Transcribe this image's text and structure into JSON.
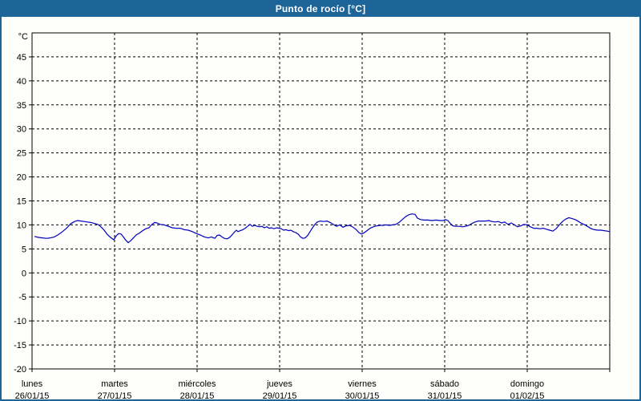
{
  "window": {
    "title": "Punto de rocío [°C]"
  },
  "colors": {
    "titlebar_bg": "#1d6498",
    "frame_border": "#1d6498",
    "title_text": "#ffffff",
    "plot_bg": "#fefefc",
    "axis": "#000000",
    "gridline": "#000000",
    "tick_text": "#000000",
    "series_line": "#0000bf"
  },
  "chart_data": {
    "type": "line",
    "title": "Punto de rocío [°C]",
    "ylabel": "°C",
    "xlabel": "",
    "ylim": [
      -20,
      50
    ],
    "y_ticks": [
      45,
      40,
      35,
      30,
      25,
      20,
      15,
      10,
      5,
      0,
      -5,
      -10,
      -15,
      -20
    ],
    "x_range_days": [
      0,
      7
    ],
    "grid": "dashed",
    "legend_position": "none",
    "x_categories": [
      {
        "name": "lunes",
        "date": "26/01/15"
      },
      {
        "name": "martes",
        "date": "27/01/15"
      },
      {
        "name": "miércoles",
        "date": "28/01/15"
      },
      {
        "name": "jueves",
        "date": "29/01/15"
      },
      {
        "name": "viernes",
        "date": "30/01/15"
      },
      {
        "name": "sábado",
        "date": "31/01/15"
      },
      {
        "name": "domingo",
        "date": "01/02/15"
      }
    ],
    "series": [
      {
        "name": "Punto de rocío",
        "unit": "°C",
        "color": "#0000bf",
        "points_day_temp": [
          [
            0.029,
            7.6
          ],
          [
            0.078,
            7.4
          ],
          [
            0.126,
            7.3
          ],
          [
            0.175,
            7.2
          ],
          [
            0.223,
            7.3
          ],
          [
            0.272,
            7.5
          ],
          [
            0.32,
            8.0
          ],
          [
            0.369,
            8.6
          ],
          [
            0.417,
            9.3
          ],
          [
            0.466,
            10.2
          ],
          [
            0.515,
            10.7
          ],
          [
            0.553,
            10.9
          ],
          [
            0.592,
            10.8
          ],
          [
            0.631,
            10.7
          ],
          [
            0.67,
            10.6
          ],
          [
            0.709,
            10.5
          ],
          [
            0.757,
            10.3
          ],
          [
            0.796,
            10.1
          ],
          [
            0.835,
            9.6
          ],
          [
            0.874,
            8.9
          ],
          [
            0.913,
            8.0
          ],
          [
            0.951,
            7.4
          ],
          [
            0.99,
            6.9
          ],
          [
            1.019,
            7.7
          ],
          [
            1.049,
            8.2
          ],
          [
            1.078,
            8.1
          ],
          [
            1.107,
            7.5
          ],
          [
            1.136,
            6.8
          ],
          [
            1.165,
            6.3
          ],
          [
            1.194,
            6.7
          ],
          [
            1.223,
            7.2
          ],
          [
            1.262,
            7.9
          ],
          [
            1.301,
            8.3
          ],
          [
            1.34,
            8.8
          ],
          [
            1.379,
            9.2
          ],
          [
            1.417,
            9.4
          ],
          [
            1.447,
            10.0
          ],
          [
            1.485,
            10.5
          ],
          [
            1.515,
            10.4
          ],
          [
            1.553,
            10.1
          ],
          [
            1.602,
            10.0
          ],
          [
            1.65,
            9.7
          ],
          [
            1.699,
            9.4
          ],
          [
            1.748,
            9.3
          ],
          [
            1.796,
            9.3
          ],
          [
            1.845,
            9.0
          ],
          [
            1.893,
            8.9
          ],
          [
            1.942,
            8.6
          ],
          [
            1.99,
            8.2
          ],
          [
            2.039,
            7.9
          ],
          [
            2.087,
            7.5
          ],
          [
            2.136,
            7.3
          ],
          [
            2.175,
            7.5
          ],
          [
            2.214,
            7.2
          ],
          [
            2.243,
            7.8
          ],
          [
            2.272,
            7.9
          ],
          [
            2.301,
            7.5
          ],
          [
            2.33,
            7.2
          ],
          [
            2.359,
            7.1
          ],
          [
            2.388,
            7.3
          ],
          [
            2.417,
            7.8
          ],
          [
            2.447,
            8.4
          ],
          [
            2.476,
            8.9
          ],
          [
            2.495,
            8.6
          ],
          [
            2.524,
            8.8
          ],
          [
            2.553,
            9.0
          ],
          [
            2.583,
            9.3
          ],
          [
            2.612,
            9.7
          ],
          [
            2.641,
            10.1
          ],
          [
            2.67,
            9.7
          ],
          [
            2.699,
            9.9
          ],
          [
            2.728,
            9.7
          ],
          [
            2.757,
            9.6
          ],
          [
            2.786,
            9.7
          ],
          [
            2.816,
            9.4
          ],
          [
            2.845,
            9.6
          ],
          [
            2.874,
            9.3
          ],
          [
            2.903,
            9.4
          ],
          [
            2.932,
            9.2
          ],
          [
            2.961,
            9.4
          ],
          [
            2.99,
            9.3
          ],
          [
            3.019,
            9.2
          ],
          [
            3.049,
            8.9
          ],
          [
            3.078,
            9.0
          ],
          [
            3.107,
            8.8
          ],
          [
            3.136,
            8.9
          ],
          [
            3.165,
            8.6
          ],
          [
            3.194,
            8.4
          ],
          [
            3.223,
            8.1
          ],
          [
            3.252,
            7.5
          ],
          [
            3.282,
            7.2
          ],
          [
            3.311,
            7.3
          ],
          [
            3.34,
            7.8
          ],
          [
            3.369,
            8.6
          ],
          [
            3.398,
            9.4
          ],
          [
            3.427,
            10.1
          ],
          [
            3.456,
            10.6
          ],
          [
            3.495,
            10.8
          ],
          [
            3.534,
            10.7
          ],
          [
            3.573,
            10.8
          ],
          [
            3.612,
            10.5
          ],
          [
            3.65,
            10.1
          ],
          [
            3.689,
            9.7
          ],
          [
            3.728,
            10.0
          ],
          [
            3.767,
            9.5
          ],
          [
            3.806,
            9.8
          ],
          [
            3.845,
            9.9
          ],
          [
            3.883,
            9.6
          ],
          [
            3.922,
            9.1
          ],
          [
            3.961,
            8.4
          ],
          [
            3.99,
            8.1
          ],
          [
            4.019,
            8.3
          ],
          [
            4.058,
            8.8
          ],
          [
            4.097,
            9.3
          ],
          [
            4.136,
            9.6
          ],
          [
            4.175,
            9.8
          ],
          [
            4.214,
            9.9
          ],
          [
            4.252,
            9.9
          ],
          [
            4.291,
            10.0
          ],
          [
            4.33,
            9.9
          ],
          [
            4.369,
            10.0
          ],
          [
            4.408,
            10.1
          ],
          [
            4.447,
            10.5
          ],
          [
            4.485,
            11.1
          ],
          [
            4.524,
            11.7
          ],
          [
            4.563,
            12.1
          ],
          [
            4.602,
            12.3
          ],
          [
            4.641,
            12.2
          ],
          [
            4.67,
            11.4
          ],
          [
            4.709,
            11.1
          ],
          [
            4.748,
            11.0
          ],
          [
            4.796,
            11.0
          ],
          [
            4.845,
            10.9
          ],
          [
            4.893,
            11.0
          ],
          [
            4.942,
            10.9
          ],
          [
            4.981,
            10.9
          ],
          [
            5.01,
            11.1
          ],
          [
            5.039,
            10.9
          ],
          [
            5.068,
            10.3
          ],
          [
            5.097,
            9.8
          ],
          [
            5.136,
            9.7
          ],
          [
            5.175,
            9.7
          ],
          [
            5.214,
            9.6
          ],
          [
            5.252,
            9.7
          ],
          [
            5.291,
            9.9
          ],
          [
            5.33,
            10.3
          ],
          [
            5.369,
            10.6
          ],
          [
            5.408,
            10.8
          ],
          [
            5.456,
            10.8
          ],
          [
            5.495,
            10.8
          ],
          [
            5.534,
            10.9
          ],
          [
            5.573,
            10.7
          ],
          [
            5.612,
            10.6
          ],
          [
            5.65,
            10.7
          ],
          [
            5.689,
            10.4
          ],
          [
            5.728,
            10.6
          ],
          [
            5.767,
            10.1
          ],
          [
            5.806,
            10.4
          ],
          [
            5.845,
            10.0
          ],
          [
            5.883,
            9.6
          ],
          [
            5.922,
            9.8
          ],
          [
            5.961,
            10.1
          ],
          [
            6.0,
            10.0
          ],
          [
            6.039,
            9.6
          ],
          [
            6.078,
            9.3
          ],
          [
            6.117,
            9.3
          ],
          [
            6.155,
            9.2
          ],
          [
            6.194,
            9.3
          ],
          [
            6.233,
            9.1
          ],
          [
            6.272,
            8.9
          ],
          [
            6.311,
            8.7
          ],
          [
            6.35,
            9.2
          ],
          [
            6.388,
            10.0
          ],
          [
            6.427,
            10.7
          ],
          [
            6.466,
            11.2
          ],
          [
            6.505,
            11.5
          ],
          [
            6.544,
            11.3
          ],
          [
            6.583,
            11.1
          ],
          [
            6.621,
            10.7
          ],
          [
            6.66,
            10.3
          ],
          [
            6.699,
            10.0
          ],
          [
            6.738,
            9.6
          ],
          [
            6.777,
            9.2
          ],
          [
            6.816,
            9.0
          ],
          [
            6.854,
            8.9
          ],
          [
            6.893,
            8.9
          ],
          [
            6.932,
            8.8
          ],
          [
            6.971,
            8.7
          ],
          [
            7.0,
            8.6
          ]
        ]
      }
    ]
  }
}
